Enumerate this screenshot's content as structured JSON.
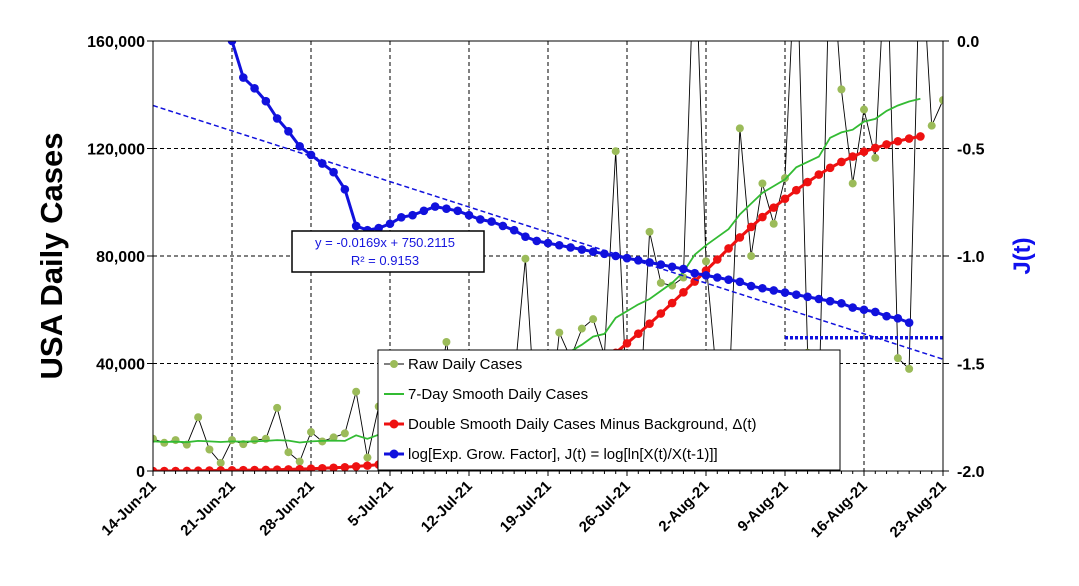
{
  "chart_data": {
    "type": "line",
    "ylabel": "USA Daily Cases",
    "y2label": "J(t)",
    "ylim": [
      0,
      160000
    ],
    "y2lim": [
      -2.0,
      0.0
    ],
    "xlim": [
      "2021-06-14",
      "2021-08-23"
    ],
    "yticks": [
      "0",
      "40,000",
      "80,000",
      "120,000",
      "160,000"
    ],
    "y2ticks": [
      "-2.0",
      "-1.5",
      "-1.0",
      "-0.5",
      "0.0"
    ],
    "xticks": [
      "14-Jun-21",
      "21-Jun-21",
      "28-Jun-21",
      "5-Jul-21",
      "12-Jul-21",
      "19-Jul-21",
      "26-Jul-21",
      "2-Aug-21",
      "9-Aug-21",
      "16-Aug-21",
      "23-Aug-21"
    ],
    "grid": true,
    "legend_position": "bottom-center",
    "colors": {
      "raw": "#9bbb59",
      "smooth7": "#33bb33",
      "double_smooth": "#ee1111",
      "log_factor": "#1111dd"
    },
    "fit": {
      "equation": "y = -0.0169x + 750.2115",
      "r2": "R² = 0.9153",
      "start": {
        "x": "2021-06-14",
        "y2": -0.3
      },
      "end": {
        "x": "2021-08-23",
        "y2": -1.48
      }
    },
    "threshold": {
      "y2": -1.38,
      "from": "2021-08-09",
      "to": "2021-08-23"
    },
    "series": [
      {
        "name": "Raw Daily Cases",
        "axis": "left",
        "start": "2021-06-14",
        "values": [
          12000,
          10500,
          11500,
          9800,
          20000,
          8000,
          3000,
          11500,
          10000,
          11500,
          12000,
          23500,
          7000,
          3500,
          14500,
          11000,
          12500,
          14000,
          29500,
          5000,
          24000,
          20000,
          22000,
          31000,
          22000,
          23000,
          48000,
          23000,
          27000,
          31000,
          25000,
          31000,
          33000,
          79000,
          13000,
          11000,
          51500,
          42000,
          53000,
          56500,
          43000,
          119000,
          25000,
          12000,
          89000,
          70000,
          69000,
          72000,
          200000,
          78000,
          32500,
          25000,
          127500,
          80000,
          107000,
          92000,
          109000,
          200000,
          44000,
          24000,
          200000,
          142000,
          107000,
          134500,
          116500,
          200000,
          42000,
          38000,
          200000,
          128500,
          138000
        ]
      },
      {
        "name": "7-Day Smooth Daily Cases",
        "axis": "left",
        "start": "2021-06-14",
        "values": [
          11000,
          10800,
          10900,
          10700,
          11200,
          11000,
          10800,
          11000,
          10900,
          11000,
          11200,
          11500,
          11300,
          10600,
          11000,
          11200,
          11300,
          11200,
          13300,
          12000,
          13500,
          15000,
          17000,
          19000,
          21000,
          22000,
          23000,
          23500,
          24500,
          26000,
          27500,
          29500,
          31500,
          36000,
          37000,
          38000,
          41500,
          44500,
          47000,
          50000,
          51000,
          57000,
          59500,
          62000,
          64000,
          67000,
          70000,
          74000,
          80500,
          84000,
          87000,
          90000,
          95500,
          99500,
          103500,
          106000,
          108500,
          113000,
          115000,
          117000,
          124000,
          126000,
          127000,
          130000,
          131000,
          134000,
          136000,
          137500,
          138500
        ]
      },
      {
        "name": "Double Smooth Daily Cases Minus Background, Δ(t)",
        "axis": "left",
        "start": "2021-06-14",
        "values": [
          0,
          0,
          0,
          50,
          100,
          150,
          200,
          250,
          300,
          350,
          400,
          500,
          600,
          700,
          850,
          1000,
          1200,
          1400,
          1700,
          2000,
          2400,
          2900,
          3500,
          4200,
          5000,
          6000,
          7100,
          8400,
          9900,
          11500,
          13300,
          15300,
          17500,
          19900,
          22400,
          25100,
          28000,
          31000,
          34100,
          37300,
          40600,
          44000,
          47500,
          51100,
          54800,
          58600,
          62500,
          66500,
          70500,
          74600,
          78700,
          82800,
          86900,
          90800,
          94500,
          98000,
          101300,
          104500,
          107500,
          110300,
          112800,
          115000,
          117000,
          118800,
          120200,
          121500,
          122700,
          123700,
          124500
        ]
      },
      {
        "name": "log[Exp. Grow. Factor], J(t) = log[ln[X(t)/X(t-1)]]",
        "axis": "right",
        "start": "2021-06-21",
        "values": [
          0.0,
          -0.17,
          -0.22,
          -0.28,
          -0.36,
          -0.42,
          -0.49,
          -0.53,
          -0.57,
          -0.61,
          -0.69,
          -0.86,
          -0.88,
          -0.87,
          -0.85,
          -0.82,
          -0.81,
          -0.79,
          -0.77,
          -0.78,
          -0.79,
          -0.81,
          -0.83,
          -0.84,
          -0.86,
          -0.88,
          -0.91,
          -0.93,
          -0.94,
          -0.95,
          -0.96,
          -0.97,
          -0.98,
          -0.99,
          -1.0,
          -1.01,
          -1.02,
          -1.03,
          -1.04,
          -1.05,
          -1.06,
          -1.08,
          -1.09,
          -1.1,
          -1.11,
          -1.12,
          -1.14,
          -1.15,
          -1.16,
          -1.17,
          -1.18,
          -1.19,
          -1.2,
          -1.21,
          -1.22,
          -1.24,
          -1.25,
          -1.26,
          -1.28,
          -1.29,
          -1.31
        ]
      }
    ]
  }
}
